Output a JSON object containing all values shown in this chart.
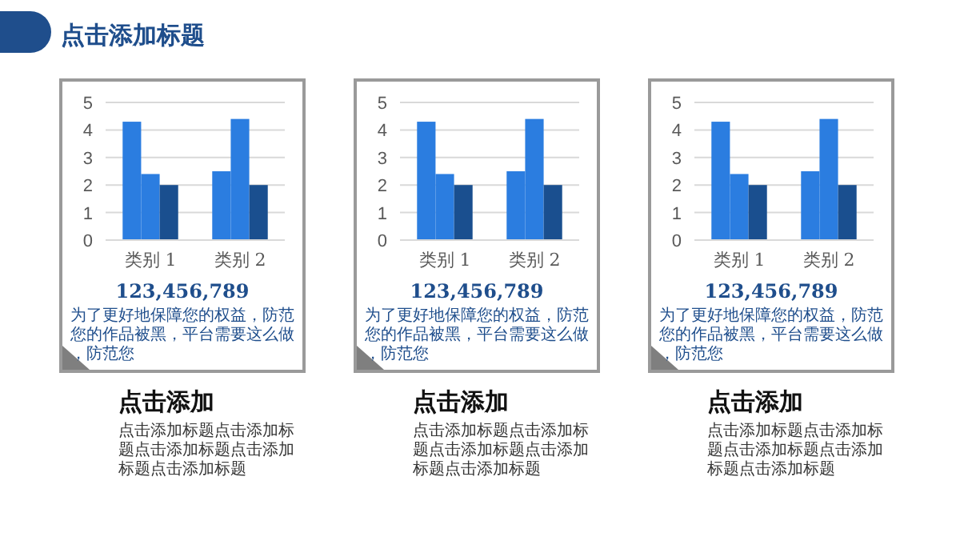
{
  "chart_data": [
    {
      "type": "bar",
      "title": "点击添加",
      "categories": [
        "类别 1",
        "类别 2"
      ],
      "series": [
        {
          "color": "#2b7de0",
          "values": [
            4.3,
            2.5
          ]
        },
        {
          "color": "#2b7de0",
          "values": [
            2.4,
            4.4
          ]
        },
        {
          "color": "#1a4f8f",
          "values": [
            2,
            2
          ]
        }
      ],
      "ylim": [
        0,
        5
      ],
      "yticks": [
        0,
        1,
        2,
        3,
        4,
        5
      ],
      "grid": "y",
      "annotations": [
        "123,456,789",
        "为了更好地保障您的权益，防范您的作品被黑，平台需要这么做，防范您",
        "点击添加标题点击添加标题点击添加标题点击添加标题点击添加标题",
        "点击添加标题"
      ]
    },
    {
      "type": "bar",
      "title": "点击添加",
      "categories": [
        "类别 1",
        "类别 2"
      ],
      "series": [
        {
          "color": "#2b7de0",
          "values": [
            4.3,
            2.5
          ]
        },
        {
          "color": "#2b7de0",
          "values": [
            2.4,
            4.4
          ]
        },
        {
          "color": "#1a4f8f",
          "values": [
            2,
            2
          ]
        }
      ],
      "ylim": [
        0,
        5
      ],
      "yticks": [
        0,
        1,
        2,
        3,
        4,
        5
      ],
      "grid": "y",
      "annotations": [
        "123,456,789",
        "为了更好地保障您的权益，防范您的作品被黑，平台需要这么做，防范您",
        "点击添加标题点击添加标题点击添加标题点击添加标题点击添加标题"
      ]
    },
    {
      "type": "bar",
      "title": "点击添加",
      "categories": [
        "类别 1",
        "类别 2"
      ],
      "series": [
        {
          "color": "#2b7de0",
          "values": [
            4.3,
            2.5
          ]
        },
        {
          "color": "#2b7de0",
          "values": [
            2.4,
            4.4
          ]
        },
        {
          "color": "#1a4f8f",
          "values": [
            2,
            2
          ]
        }
      ],
      "ylim": [
        0,
        5
      ],
      "yticks": [
        0,
        1,
        2,
        3,
        4,
        5
      ],
      "grid": "y",
      "annotations": [
        "123,456,789",
        "为了更好地保障您的权益，防范您的作品被黑，平台需要这么做，防范您",
        "点击添加标题点击添加标题点击添加标题点击添加标题点击添加标题"
      ]
    }
  ]
}
